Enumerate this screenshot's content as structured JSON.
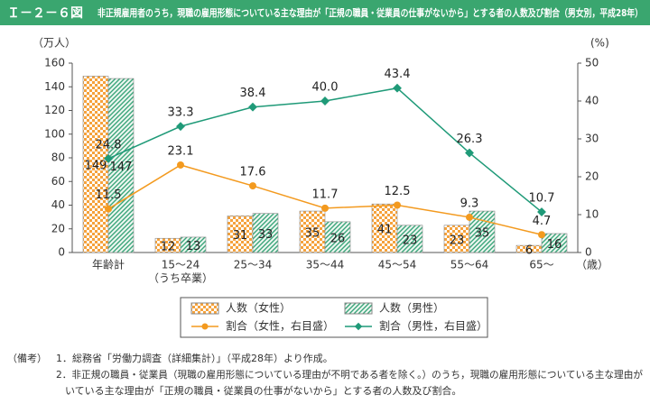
{
  "header": {
    "figure_no": "Ｉ－２－６図",
    "title": "非正規雇用者のうち，現職の雇用形態についている主な理由が「正規の職員・従業員の仕事がないから」とする者の人数及び割合（男女別，平成28年）"
  },
  "chart_data": {
    "type": "bar-line",
    "y_label": "（万人）",
    "y2_label": "(%)",
    "x_unit": "（歳）",
    "categories": [
      "年齢計",
      "15～24",
      "25～34",
      "35～44",
      "45～54",
      "55～64",
      "65～"
    ],
    "category_sublabels": [
      null,
      "（うち卒業）",
      null,
      null,
      null,
      null,
      null
    ],
    "ylim": [
      0,
      160
    ],
    "yticks": [
      0,
      20,
      40,
      60,
      80,
      100,
      120,
      140,
      160
    ],
    "y2lim": [
      0,
      50
    ],
    "y2ticks": [
      0,
      10,
      20,
      30,
      40,
      50
    ],
    "series": [
      {
        "name": "人数（女性）",
        "kind": "bar",
        "color": "#f5a23c",
        "values": [
          149,
          12,
          31,
          35,
          41,
          23,
          6
        ]
      },
      {
        "name": "人数（男性）",
        "kind": "bar",
        "color": "#3aa57a",
        "values": [
          147,
          13,
          33,
          26,
          23,
          35,
          16
        ]
      },
      {
        "name": "割合（女性，右目盛）",
        "kind": "line",
        "axis": "y2",
        "color": "#f39a1f",
        "values": [
          11.5,
          23.1,
          17.6,
          11.7,
          12.5,
          9.3,
          4.7
        ]
      },
      {
        "name": "割合（男性，右目盛）",
        "kind": "line",
        "axis": "y2",
        "color": "#1f9a78",
        "values": [
          24.8,
          33.3,
          38.4,
          40.0,
          43.4,
          26.3,
          10.7
        ],
        "value_labels": [
          "24.8",
          "33.3",
          "38.4",
          "40.0",
          "43.4",
          "26.3",
          "10.7"
        ]
      }
    ]
  },
  "notes": {
    "label": "（備考）",
    "items": [
      "1．総務省「労働力調査（詳細集計）」（平成28年）より作成。",
      "2．非正規の職員・従業員（現職の雇用形態についている理由が不明である者を除く。）のうち，現職の雇用形態についている主な理由が",
      "いている主な理由が「正規の職員・従業員の仕事がないから」とする者の人数及び割合。"
    ]
  }
}
